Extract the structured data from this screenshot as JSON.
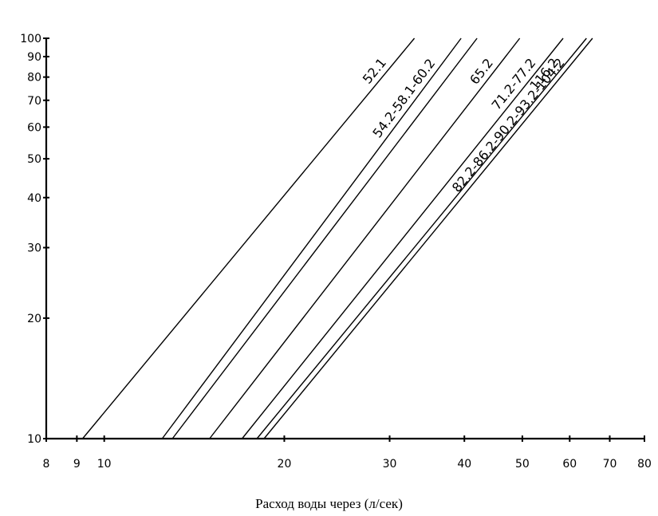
{
  "chart_data": {
    "type": "line",
    "title": "",
    "xlabel": "Расход воды через (л/сек)",
    "ylabel": "",
    "x_scale": "log",
    "y_scale": "log",
    "xlim": [
      8,
      80
    ],
    "ylim": [
      10,
      100
    ],
    "x_ticks": [
      8,
      9,
      10,
      20,
      30,
      40,
      50,
      60,
      70,
      80
    ],
    "y_ticks": [
      10,
      20,
      30,
      40,
      50,
      60,
      70,
      80,
      90,
      100
    ],
    "grid": false,
    "series": [
      {
        "name": "52.1",
        "points": [
          [
            9.2,
            10
          ],
          [
            33,
            100
          ]
        ]
      },
      {
        "name": "54.2-58.1-60.2",
        "points": [
          [
            12.5,
            10
          ],
          [
            39.5,
            100
          ]
        ]
      },
      {
        "name": "",
        "points": [
          [
            13,
            10
          ],
          [
            42,
            100
          ]
        ]
      },
      {
        "name": "65.2",
        "points": [
          [
            15,
            10
          ],
          [
            49.5,
            100
          ]
        ]
      },
      {
        "name": "71.2-77.2",
        "points": [
          [
            17,
            10
          ],
          [
            58.5,
            100
          ]
        ]
      },
      {
        "name": "116.2",
        "points": [
          [
            18,
            10
          ],
          [
            64,
            100
          ]
        ]
      },
      {
        "name": "82.2-86.2-90.2-93.2-104.2",
        "points": [
          [
            18.5,
            10
          ],
          [
            65.5,
            100
          ]
        ]
      }
    ]
  }
}
